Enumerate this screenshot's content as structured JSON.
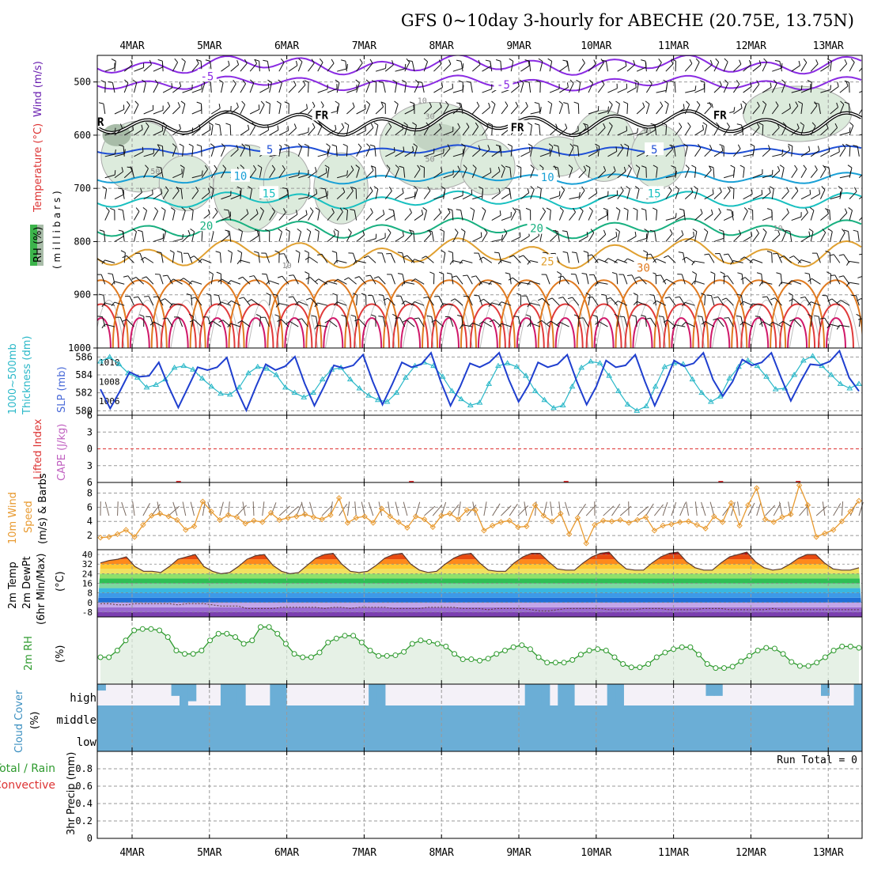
{
  "title": "GFS 0~10day 3-hourly for ABECHE (20.75E, 13.75N)",
  "date_labels": [
    "4MAR",
    "5MAR",
    "6MAR",
    "7MAR",
    "8MAR",
    "9MAR",
    "10MAR",
    "11MAR",
    "12MAR",
    "13MAR"
  ],
  "colors": {
    "rh_fill": "#dcebdc",
    "rh_dark": "#a8bca8",
    "slp": "#1f3fcf",
    "thickness": "#2ab8c8",
    "wind10": "#e89a30",
    "rh2m": "#2e9a2e",
    "cloud": "#6baed6",
    "cloud_bg": "#f4f1f8",
    "lifted_index": "#dd3333",
    "cape": "#c060c0",
    "grid": "#999999",
    "temp_colors": {
      "-5": "#8a2be2",
      "FR": "#000000",
      "5": "#1f4fd6",
      "10": "#19a0d6",
      "15": "#19c0c0",
      "20": "#19b080",
      "25": "#e0a030",
      "30": "#e07a20",
      "35": "#e03a3a",
      "40": "#d0186a"
    }
  },
  "chart_data": [
    {
      "panel": "upper-air",
      "type": "contour",
      "ylabel_parts": [
        "RH (%)",
        "Temperature (°C)",
        "Wind (m/s)"
      ],
      "ylabel_unit": "(millibars)",
      "ylabel_units_word": "( m i l l i b a r s )",
      "y_ticks": [
        500,
        600,
        700,
        800,
        900,
        1000
      ],
      "y_range": [
        1000,
        450
      ],
      "x_range_days": [
        3.55,
        13.3
      ],
      "isotherm_labels": [
        {
          "text": "-5",
          "day": 4.97,
          "p": 492,
          "c": "-5"
        },
        {
          "text": "-5",
          "day": 8.8,
          "p": 508,
          "c": "-5"
        },
        {
          "text": "FR",
          "day": 3.55,
          "p": 578,
          "c": "FR"
        },
        {
          "text": "FR",
          "day": 6.45,
          "p": 565,
          "c": "FR"
        },
        {
          "text": "FR",
          "day": 8.98,
          "p": 588,
          "c": "FR"
        },
        {
          "text": "FR",
          "day": 11.6,
          "p": 565,
          "c": "FR"
        },
        {
          "text": "5",
          "day": 5.78,
          "p": 630,
          "c": "5"
        },
        {
          "text": "5",
          "day": 10.75,
          "p": 630,
          "c": "5"
        },
        {
          "text": "10",
          "day": 5.4,
          "p": 680,
          "c": "10"
        },
        {
          "text": "10",
          "day": 9.37,
          "p": 682,
          "c": "10"
        },
        {
          "text": "15",
          "day": 5.77,
          "p": 712,
          "c": "15"
        },
        {
          "text": "15",
          "day": 10.75,
          "p": 712,
          "c": "15"
        },
        {
          "text": "20",
          "day": 4.96,
          "p": 773,
          "c": "20"
        },
        {
          "text": "20",
          "day": 9.23,
          "p": 778,
          "c": "20"
        },
        {
          "text": "25",
          "day": 9.37,
          "p": 840,
          "c": "25"
        },
        {
          "text": "30",
          "day": 10.61,
          "p": 852,
          "c": "30"
        }
      ],
      "rh_labels": [
        {
          "text": "10",
          "day": 7.75,
          "p": 540
        },
        {
          "text": "30",
          "day": 7.85,
          "p": 570
        },
        {
          "text": "50",
          "day": 4.3,
          "p": 673
        },
        {
          "text": "50",
          "day": 7.85,
          "p": 650
        },
        {
          "text": "30",
          "day": 10.65,
          "p": 597
        },
        {
          "text": "10",
          "day": 12.35,
          "p": 780
        },
        {
          "text": "10",
          "day": 6.0,
          "p": 850
        }
      ]
    },
    {
      "panel": "slp-thickness",
      "type": "line",
      "ylabel_left": "1000-500mb Thickness (dm)",
      "ylabel_left_lines": [
        "1000~500mb",
        "Thickness (dm)"
      ],
      "ylabel_right": "SLP (mb)",
      "left_ticks": [
        580,
        582,
        584,
        586
      ],
      "left_range": [
        579.5,
        587
      ],
      "right_ticks": [
        1006,
        1008,
        1010
      ],
      "right_range": [
        1004.5,
        1011.5
      ],
      "series": [
        {
          "name": "SLP",
          "axis": "right",
          "values": [
            1007.2,
            1005.2,
            1007.0,
            1009.0,
            1008.5,
            1008.6,
            1010.0,
            1007.5,
            1005.3,
            1007.4,
            1009.5,
            1009.2,
            1009.5,
            1010.5,
            1007.2,
            1005.0,
            1007.5,
            1009.8,
            1009.2,
            1009.6,
            1010.6,
            1007.8,
            1005.5,
            1007.5,
            1009.7,
            1009.4,
            1009.7,
            1010.8,
            1008.0,
            1005.6,
            1007.7,
            1010.0,
            1009.5,
            1009.8,
            1011.0,
            1008.0,
            1005.5,
            1007.5,
            1009.9,
            1009.5,
            1010.0,
            1011.0,
            1008.2,
            1005.9,
            1007.6,
            1010.0,
            1009.5,
            1009.8,
            1010.8,
            1008.0,
            1005.6,
            1007.5,
            1010.2,
            1009.5,
            1009.7,
            1010.8,
            1008.0,
            1005.5,
            1007.7,
            1010.2,
            1009.6,
            1009.9,
            1011.0,
            1008.2,
            1006.5,
            1008.0,
            1010.3,
            1009.7,
            1010.0,
            1011.0,
            1008.4,
            1006.0,
            1008.0,
            1009.8,
            1009.7,
            1010.1,
            1011.2,
            1008.4,
            1007.0
          ]
        },
        {
          "name": "Thickness",
          "axis": "left",
          "values": [
            585.5,
            586.0,
            585.2,
            584.2,
            583.7,
            582.6,
            582.9,
            583.5,
            584.8,
            585.0,
            584.6,
            583.6,
            582.7,
            581.9,
            581.8,
            582.6,
            584.2,
            584.9,
            584.7,
            584.0,
            582.6,
            582.0,
            581.5,
            582.0,
            583.5,
            584.6,
            584.8,
            583.5,
            582.5,
            581.7,
            581.2,
            581.0,
            582.0,
            583.7,
            585.0,
            585.4,
            585.0,
            583.8,
            582.2,
            581.3,
            580.6,
            580.9,
            583.0,
            585.0,
            585.3,
            584.9,
            583.9,
            582.2,
            581.2,
            580.3,
            580.6,
            582.7,
            584.8,
            585.5,
            585.3,
            583.9,
            582.2,
            580.7,
            580.0,
            580.5,
            582.7,
            584.9,
            585.3,
            585.2,
            583.5,
            582.0,
            581.0,
            581.6,
            583.6,
            584.9,
            585.6,
            585.0,
            583.8,
            582.4,
            582.5,
            584.0,
            585.6,
            586.1,
            585.0,
            584.0,
            583.0,
            582.5,
            583.0
          ]
        }
      ]
    },
    {
      "panel": "lifted-cape",
      "type": "line",
      "ylabel_left": "Lifted Index",
      "ylabel_right": "CAPE (J/kg)",
      "ticks": [
        "6",
        "3",
        "0",
        "3",
        "6"
      ],
      "y_range": [
        -6,
        6
      ],
      "lifted_index_zero_line": true,
      "cape_blips_days": [
        4.57,
        7.58,
        9.58,
        11.58,
        12.58
      ]
    },
    {
      "panel": "wind10m",
      "type": "line",
      "ylabel": "10m Wind Speed (m/s) & Barbs",
      "ylabel_lines": [
        "10m Wind",
        "Speed",
        "(m/s) & Barbs"
      ],
      "y_ticks": [
        2,
        4,
        6,
        8
      ],
      "y_range": [
        0,
        9.5
      ],
      "series": [
        {
          "name": "Speed",
          "values": [
            1.7,
            1.8,
            2.2,
            2.8,
            1.8,
            3.5,
            4.8,
            5.1,
            4.7,
            4.2,
            2.8,
            3.3,
            6.8,
            5.4,
            4.2,
            4.9,
            4.6,
            3.7,
            4.1,
            3.9,
            5.2,
            4.2,
            4.5,
            4.7,
            5.0,
            4.6,
            4.3,
            4.9,
            7.3,
            3.8,
            4.5,
            4.7,
            3.8,
            5.8,
            4.7,
            3.9,
            3.1,
            4.7,
            4.3,
            3.2,
            4.8,
            5.1,
            4.3,
            5.6,
            5.6,
            2.7,
            3.4,
            3.9,
            4.1,
            3.2,
            3.3,
            6.3,
            4.8,
            4.0,
            5.1,
            2.2,
            4.5,
            0.9,
            3.5,
            4.1,
            4.0,
            4.2,
            3.8,
            4.2,
            4.6,
            2.7,
            3.4,
            3.6,
            3.9,
            4.0,
            3.5,
            3.0,
            4.7,
            3.9,
            6.6,
            3.4,
            6.3,
            8.7,
            4.3,
            3.9,
            4.6,
            5.0,
            9.1,
            6.3,
            1.8,
            2.3,
            2.8,
            4.0,
            5.4,
            6.9
          ]
        }
      ]
    },
    {
      "panel": "temp2m",
      "type": "area",
      "ylabel": "2m Temp 2m DewPt (6hr Min/Max) (°C)",
      "ylabel_lines": [
        "2m Temp",
        "2m DewPt",
        "(6hr Min/Max)"
      ],
      "ylabel_unit": "(°C)",
      "y_ticks": [
        -8,
        0,
        8,
        16,
        24,
        32,
        40
      ],
      "y_range": [
        -12,
        44
      ],
      "temp": [
        33,
        35,
        36,
        38,
        30,
        26,
        26,
        25,
        30,
        36,
        38,
        40,
        30,
        26,
        24,
        25,
        30,
        36,
        39,
        40,
        31,
        26,
        24,
        25,
        31,
        37,
        40,
        41,
        32,
        26,
        25,
        26,
        31,
        37,
        40,
        41,
        32,
        27,
        25,
        26,
        32,
        37,
        40,
        41,
        33,
        27,
        26,
        26,
        33,
        38,
        41,
        41,
        34,
        28,
        27,
        27,
        33,
        38,
        41,
        42,
        34,
        28,
        27,
        27,
        33,
        38,
        41,
        42,
        34,
        29,
        27,
        27,
        33,
        38,
        40,
        42,
        34,
        29,
        27,
        28,
        32,
        37,
        40,
        40,
        33,
        28,
        27,
        27,
        29
      ],
      "dewpoint": [
        -1,
        -1,
        -2,
        -2,
        -1,
        -1,
        -1,
        -1,
        -1,
        -2,
        -1,
        -1,
        -1,
        -2,
        -3,
        -3,
        -3,
        -5,
        -5,
        -5,
        -5,
        -4,
        -4,
        -4,
        -4,
        -4,
        -5,
        -4,
        -4,
        -5,
        -4,
        -4,
        -4,
        -4,
        -5,
        -5,
        -5,
        -5,
        -4,
        -4,
        -4,
        -4,
        -5,
        -5,
        -5,
        -6,
        -5,
        -5,
        -5,
        -5,
        -6,
        -7,
        -7,
        -6,
        -5,
        -5,
        -5,
        -5,
        -5,
        -6,
        -6,
        -6,
        -6,
        -5,
        -5,
        -5,
        -6,
        -6,
        -6,
        -6,
        -5,
        -5,
        -5,
        -6,
        -6,
        -6,
        -6,
        -6,
        -5,
        -6,
        -6,
        -6,
        -6,
        -6,
        -6,
        -6,
        -6,
        -6,
        -6
      ]
    },
    {
      "panel": "rh2m",
      "type": "line",
      "ylabel": "2m RH (%)",
      "ylabel_lines": [
        "2m RH"
      ],
      "ylabel_unit": "(%)",
      "y_range": [
        0,
        100
      ],
      "series": [
        {
          "name": "2m RH",
          "values": [
            40,
            40,
            50,
            65,
            80,
            82,
            82,
            80,
            70,
            50,
            45,
            45,
            50,
            65,
            75,
            75,
            70,
            60,
            65,
            85,
            85,
            75,
            60,
            45,
            40,
            40,
            47,
            62,
            68,
            72,
            72,
            62,
            50,
            42,
            42,
            43,
            48,
            60,
            65,
            63,
            60,
            56,
            45,
            37,
            37,
            35,
            38,
            45,
            50,
            55,
            58,
            52,
            40,
            32,
            32,
            32,
            36,
            44,
            50,
            52,
            50,
            40,
            30,
            25,
            25,
            30,
            40,
            47,
            52,
            55,
            55,
            44,
            30,
            24,
            24,
            26,
            34,
            42,
            50,
            54,
            53,
            45,
            33,
            27,
            27,
            32,
            40,
            50,
            56,
            56,
            54
          ]
        }
      ]
    },
    {
      "panel": "cloud",
      "type": "area",
      "ylabel": "Cloud Cover (%)",
      "ylabel_lines": [
        "Cloud Cover"
      ],
      "ylabel_unit": "(%)",
      "levels": [
        "high",
        "middle",
        "low"
      ],
      "high_cover": [
        30,
        0,
        0,
        0,
        0,
        0,
        0,
        0,
        0,
        55,
        100,
        80,
        0,
        0,
        0,
        100,
        100,
        100,
        0,
        0,
        0,
        100,
        100,
        0,
        0,
        0,
        0,
        0,
        0,
        0,
        0,
        0,
        0,
        100,
        100,
        0,
        0,
        0,
        0,
        0,
        0,
        0,
        0,
        0,
        0,
        0,
        0,
        0,
        0,
        0,
        0,
        0,
        100,
        100,
        100,
        0,
        100,
        100,
        0,
        0,
        0,
        0,
        100,
        100,
        0,
        0,
        0,
        0,
        0,
        0,
        0,
        0,
        0,
        0,
        55,
        55,
        0,
        0,
        0,
        0,
        0,
        0,
        0,
        0,
        0,
        0,
        0,
        0,
        55,
        0,
        0,
        0,
        100
      ]
    },
    {
      "panel": "precip",
      "type": "bar",
      "ylabel": "3hr Precip (mm)",
      "legend_left": [
        "Total / Rain",
        "Convective"
      ],
      "y_ticks": [
        0,
        0.2,
        0.4,
        0.6,
        0.8
      ],
      "y_tick_labels": [
        "0",
        "0.2",
        "0.4",
        "0.6",
        "0.8"
      ],
      "y_range": [
        0,
        1
      ],
      "annotation": "Run Total = 0",
      "values": []
    }
  ]
}
